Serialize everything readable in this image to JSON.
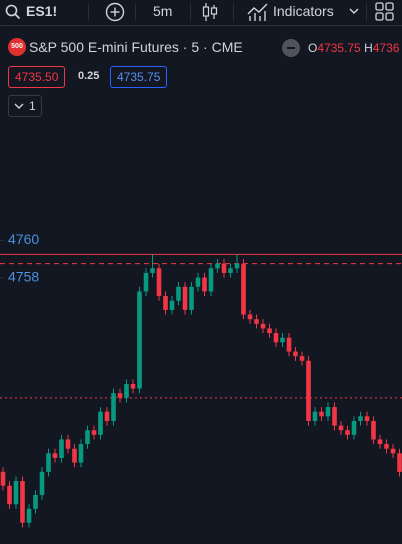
{
  "toolbar": {
    "symbol": "ES1!",
    "interval": "5m",
    "indicators": "Indicators"
  },
  "legend": {
    "badge": "500",
    "title": "S&P 500 E-mini Futures · 5 · CME",
    "open_label": "O",
    "open": "4735.75",
    "high_label": "H",
    "high": "4736"
  },
  "prices": {
    "sell": "4735.50",
    "spread": "0.25",
    "buy": "4735.75"
  },
  "layout_button": "1",
  "chart_data": {
    "type": "candlestick",
    "open": [
      4747.5,
      4746.75,
      4745.75,
      4747,
      4744.75,
      4745.5,
      4746.25,
      4747.5,
      4748.5,
      4748.25,
      4749.25,
      4748.75,
      4748,
      4749,
      4749.75,
      4749.5,
      4750.75,
      4750.25,
      4751.75,
      4751.5,
      4752.25,
      4752,
      4757.25,
      4758.25,
      4758.5,
      4757,
      4756.25,
      4756.75,
      4757.5,
      4756.25,
      4757.5,
      4758,
      4757.25,
      4758.5,
      4758.75,
      4758.25,
      4758.5,
      4758.75,
      4756,
      4755.75,
      4755.5,
      4755.25,
      4755,
      4754.5,
      4754.75,
      4754,
      4753.75,
      4753.5,
      4750.25,
      4750.75,
      4750.5,
      4751,
      4750,
      4749.75,
      4749.5,
      4750.25,
      4750.5,
      4750.25,
      4749.25,
      4749,
      4748.75,
      4748.5
    ],
    "high": [
      4747.75,
      4747,
      4747.25,
      4747.25,
      4745.75,
      4746.5,
      4747.75,
      4748.75,
      4748.75,
      4749.5,
      4749.5,
      4749,
      4749.25,
      4750,
      4750,
      4751,
      4751,
      4752,
      4752,
      4752.5,
      4752.5,
      4757.5,
      4758.5,
      4759.25,
      4758.75,
      4757.25,
      4757,
      4757.75,
      4757.75,
      4757.75,
      4758.25,
      4758.25,
      4758.75,
      4759,
      4759,
      4758.75,
      4759.25,
      4759,
      4756.25,
      4756,
      4755.75,
      4755.5,
      4755.25,
      4755,
      4755,
      4754.25,
      4754,
      4753.75,
      4751,
      4751,
      4751.25,
      4751.25,
      4750.25,
      4750,
      4750.5,
      4750.75,
      4750.75,
      4750.5,
      4749.5,
      4749.25,
      4749,
      4748.75
    ],
    "low": [
      4746.5,
      4745.5,
      4745.5,
      4744.5,
      4744.5,
      4745.25,
      4746,
      4747.25,
      4748,
      4748,
      4748.5,
      4747.75,
      4747.75,
      4748.75,
      4749.25,
      4749.25,
      4750,
      4750,
      4751.25,
      4751.25,
      4751.75,
      4751.75,
      4757,
      4758,
      4756.75,
      4756,
      4756,
      4756.5,
      4756,
      4756,
      4757.25,
      4757,
      4757,
      4758.25,
      4758,
      4758,
      4758.25,
      4755.75,
      4755.5,
      4755.25,
      4755,
      4754.75,
      4754.25,
      4754.25,
      4753.75,
      4753.5,
      4753.25,
      4750,
      4750,
      4750.25,
      4750.25,
      4749.75,
      4749.5,
      4749.25,
      4749.25,
      4750,
      4750,
      4749,
      4748.75,
      4748.5,
      4748.25,
      4747.25
    ],
    "close": [
      4746.75,
      4745.75,
      4747,
      4744.75,
      4745.5,
      4746.25,
      4747.5,
      4748.5,
      4748.25,
      4749.25,
      4748.75,
      4748,
      4749,
      4749.75,
      4749.5,
      4750.75,
      4750.25,
      4751.75,
      4751.5,
      4752.25,
      4752,
      4757.25,
      4758.25,
      4758.5,
      4757,
      4756.25,
      4756.75,
      4757.5,
      4756.25,
      4757.5,
      4758,
      4757.25,
      4758.5,
      4758.75,
      4758.25,
      4758.5,
      4758.75,
      4756,
      4755.75,
      4755.5,
      4755.25,
      4755,
      4754.5,
      4754.75,
      4754,
      4753.75,
      4753.5,
      4750.25,
      4750.75,
      4750.5,
      4751,
      4750,
      4749.75,
      4749.5,
      4750.25,
      4750.5,
      4750.25,
      4749.25,
      4749,
      4748.75,
      4748.5,
      4747.5
    ],
    "ylim": [
      4743.6,
      4773.0
    ],
    "yticks": [
      4760,
      4758
    ],
    "up_color": "#089981",
    "down_color": "#f23645",
    "price_lines": [
      {
        "value": 4759.25,
        "style": "solid",
        "color": "#f23645"
      },
      {
        "value": 4758.75,
        "style": "dashed",
        "color": "#f23645"
      },
      {
        "value": 4751.5,
        "style": "dotted",
        "color": "#f23645"
      }
    ]
  }
}
